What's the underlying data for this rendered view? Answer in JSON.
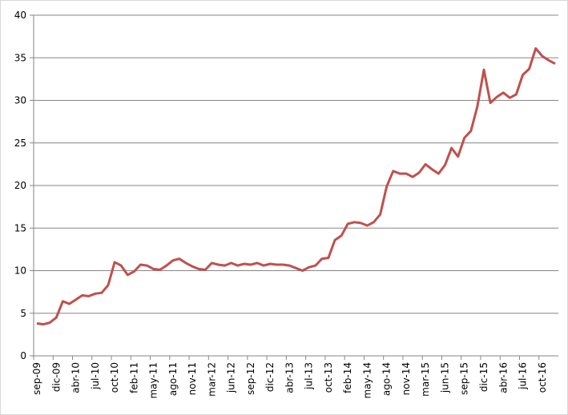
{
  "chart_data": {
    "type": "line",
    "categories": [
      "sep-09",
      null,
      null,
      "dic-09",
      null,
      null,
      "abr-10",
      null,
      null,
      "jul-10",
      null,
      null,
      "oct-10",
      null,
      null,
      "feb-11",
      null,
      null,
      "may-11",
      null,
      null,
      "ago-11",
      null,
      null,
      "nov-11",
      null,
      null,
      "mar-12",
      null,
      null,
      "jun-12",
      null,
      null,
      "sep-12",
      null,
      null,
      "dic-12",
      null,
      null,
      "abr-13",
      null,
      null,
      "jul-13",
      null,
      null,
      "oct-13",
      null,
      null,
      "feb-14",
      null,
      null,
      "may-14",
      null,
      null,
      "ago-14",
      null,
      null,
      "nov-14",
      null,
      null,
      "mar-15",
      null,
      null,
      "jun-15",
      null,
      null,
      "sep-15",
      null,
      null,
      "dic-15",
      null,
      null,
      "abr-16",
      null,
      null,
      "jul-16",
      null,
      null,
      "oct-16",
      null,
      null
    ],
    "series": [
      {
        "color": "#c0504d",
        "values": [
          3.8,
          3.7,
          3.9,
          4.5,
          6.4,
          6.1,
          6.6,
          7.1,
          7.0,
          7.3,
          7.4,
          8.3,
          11.0,
          10.6,
          9.5,
          9.9,
          10.7,
          10.6,
          10.2,
          10.1,
          10.6,
          11.2,
          11.4,
          10.9,
          10.5,
          10.2,
          10.1,
          10.9,
          10.7,
          10.6,
          10.9,
          10.6,
          10.8,
          10.7,
          10.9,
          10.6,
          10.8,
          10.7,
          10.7,
          10.6,
          10.3,
          10.0,
          10.4,
          10.6,
          11.4,
          11.5,
          13.6,
          14.1,
          15.5,
          15.7,
          15.6,
          15.3,
          15.7,
          16.6,
          19.9,
          21.7,
          21.4,
          21.4,
          21.0,
          21.5,
          22.5,
          21.9,
          21.4,
          22.4,
          24.4,
          23.4,
          25.6,
          26.4,
          29.3,
          33.6,
          29.7,
          30.4,
          30.9,
          30.3,
          30.7,
          33.0,
          33.7,
          36.1,
          35.2,
          34.7,
          34.3
        ]
      }
    ],
    "ylim": [
      0,
      40
    ],
    "yticks": [
      0,
      5,
      10,
      15,
      20,
      25,
      30,
      35,
      40
    ],
    "grid": true
  }
}
